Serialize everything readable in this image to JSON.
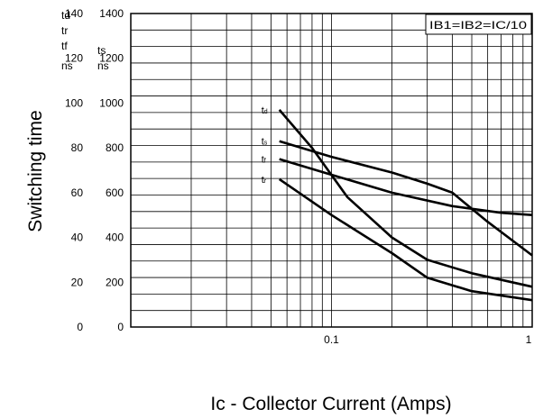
{
  "chart_data": {
    "type": "line",
    "title": "",
    "xlabel": "Ic - Collector Current (Amps)",
    "ylabel": "Switching time",
    "x_scale": "log",
    "xlim": [
      0.01,
      1
    ],
    "x_tick_labels": [
      "0.1",
      "1"
    ],
    "left_axis": {
      "unit_header": [
        "td",
        "tr",
        "tf",
        "ns"
      ],
      "ticks": [
        "0",
        "20",
        "40",
        "60",
        "80",
        "100",
        "120",
        "140"
      ],
      "ylim": [
        0,
        140
      ]
    },
    "right_axis": {
      "unit_header": [
        "ts",
        "ns"
      ],
      "ticks": [
        "0",
        "200",
        "400",
        "600",
        "800",
        "1000",
        "1200",
        "1400"
      ],
      "ylim": [
        0,
        1400
      ]
    },
    "grid": true,
    "condition": "IB1=IB2=IC/10",
    "series": [
      {
        "name": "td",
        "label_main": "t",
        "label_sub": "d",
        "axis": "left",
        "x": [
          0.055,
          0.08,
          0.12,
          0.2,
          0.3,
          0.5,
          1.0
        ],
        "y": [
          97,
          80,
          58,
          40,
          30,
          24,
          18
        ]
      },
      {
        "name": "ts",
        "label_main": "t",
        "label_sub": "s",
        "axis": "right",
        "x": [
          0.055,
          0.1,
          0.2,
          0.3,
          0.4,
          0.6,
          1.0
        ],
        "y": [
          830,
          760,
          690,
          640,
          600,
          470,
          320
        ]
      },
      {
        "name": "tf",
        "label_main": "t",
        "label_sub": "f",
        "axis": "left",
        "x": [
          0.055,
          0.1,
          0.2,
          0.4,
          0.7,
          1.0
        ],
        "y": [
          75,
          68,
          60,
          54,
          51,
          50
        ]
      },
      {
        "name": "tr",
        "label_main": "t",
        "label_sub": "r",
        "axis": "left",
        "x": [
          0.055,
          0.1,
          0.2,
          0.3,
          0.5,
          1.0
        ],
        "y": [
          66,
          50,
          33,
          22,
          16,
          12
        ]
      }
    ]
  }
}
